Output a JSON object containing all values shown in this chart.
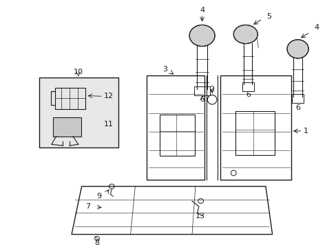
{
  "bg_color": "#ffffff",
  "line_color": "#1a1a1a",
  "figsize": [
    4.89,
    3.6
  ],
  "dpi": 100,
  "box_color": "#e8e8e8"
}
